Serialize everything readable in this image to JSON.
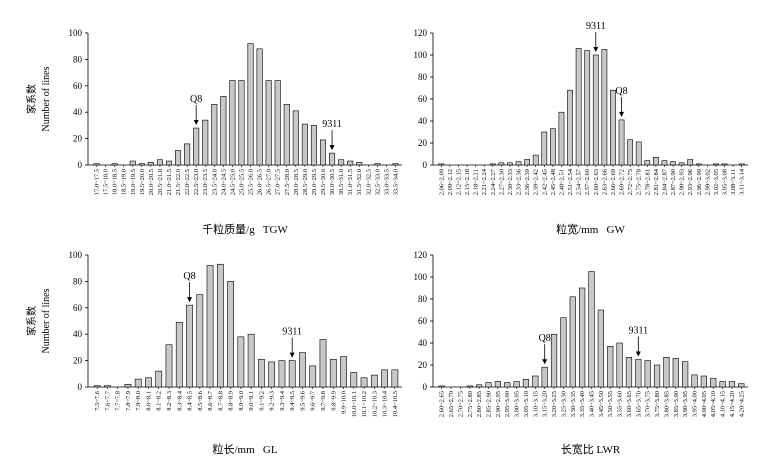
{
  "chart_data": [
    {
      "type": "bar",
      "title": "千粒质量/g   TGW",
      "ylabel": [
        "家系数",
        "Number of lines"
      ],
      "color": "#c8c8c8",
      "categories": [
        "17.0~17.5",
        "17.5~18.0",
        "18.0~18.5",
        "18.5~19.0",
        "19.0~19.5",
        "19.5~20.0",
        "20.0~20.5",
        "20.5~21.0",
        "21.0~21.5",
        "21.5~22.0",
        "22.0~22.5",
        "22.5~23.0",
        "23.0~23.5",
        "23.5~24.0",
        "24.0~24.5",
        "24.5~25.0",
        "25.0~25.5",
        "25.5~26.0",
        "26.0~26.5",
        "26.5~27.0",
        "27.0~27.5",
        "27.5~28.0",
        "28.0~28.5",
        "28.5~29.0",
        "29.0~29.5",
        "29.5~30.0",
        "30.0~30.5",
        "30.5~31.0",
        "31.0~31.5",
        "31.5~32.0",
        "32.0~32.5",
        "32.5~33.0",
        "33.0~33.5",
        "33.5~34.0"
      ],
      "values": [
        1,
        0,
        1,
        0,
        3,
        1,
        2,
        4,
        3,
        11,
        16,
        28,
        34,
        46,
        52,
        64,
        64,
        92,
        88,
        64,
        64,
        46,
        41,
        31,
        30,
        19,
        9,
        4,
        3,
        2,
        0,
        1,
        0,
        1
      ],
      "ylim": [
        0,
        100
      ],
      "yticks": [
        0,
        20,
        40,
        60,
        80,
        100
      ],
      "annotations": [
        {
          "label": "Q8",
          "category": "22.5~23.0"
        },
        {
          "label": "9311",
          "category": "30.0~30.5"
        }
      ]
    },
    {
      "type": "bar",
      "title": "粒宽/mm   GW",
      "color": "#c8c8c8",
      "categories": [
        "2.06~2.09",
        "2.09~2.12",
        "2.12~2.15",
        "2.15~2.18",
        "2.18~2.21",
        "2.21~2.24",
        "2.24~2.27",
        "2.27~2.30",
        "2.30~2.33",
        "2.33~2.36",
        "2.36~2.39",
        "2.39~2.42",
        "2.42~2.45",
        "2.45~2.48",
        "2.48~2.51",
        "2.51~2.54",
        "2.54~2.57",
        "2.57~2.60",
        "2.60~2.63",
        "2.63~2.66",
        "2.66~2.69",
        "2.69~2.72",
        "2.72~2.75",
        "2.75~2.78",
        "2.78~2.81",
        "2.81~2.84",
        "2.84~2.87",
        "2.87~2.90",
        "2.90~2.93",
        "2.93~2.96",
        "2.96~2.99",
        "2.99~3.02",
        "3.02~3.05",
        "3.05~3.08",
        "3.08~3.11",
        "3.11~3.14"
      ],
      "values": [
        1,
        0,
        0,
        0,
        0,
        0,
        1,
        2,
        2,
        3,
        5,
        9,
        30,
        33,
        48,
        68,
        106,
        104,
        100,
        105,
        68,
        41,
        23,
        21,
        4,
        7,
        4,
        3,
        2,
        5,
        1,
        0,
        1,
        1,
        0,
        1
      ],
      "ylim": [
        0,
        120
      ],
      "yticks": [
        0,
        20,
        40,
        60,
        80,
        100,
        120
      ],
      "annotations": [
        {
          "label": "9311",
          "category": "2.60~2.63"
        },
        {
          "label": "Q8",
          "category": "2.69~2.72"
        }
      ]
    },
    {
      "type": "bar",
      "title": "粒长/mm   GL",
      "ylabel": [
        "家系数",
        "Number of lines"
      ],
      "color": "#c8c8c8",
      "categories": [
        "7.5~7.6",
        "7.6~7.7",
        "7.7~7.8",
        "7.8~7.9",
        "7.9~8.0",
        "8.0~8.1",
        "8.1~8.2",
        "8.2~8.3",
        "8.3~8.4",
        "8.4~8.5",
        "8.5~8.6",
        "8.6~8.7",
        "8.7~8.8",
        "8.8~8.9",
        "8.9~9.0",
        "9.0~9.1",
        "9.1~9.2",
        "9.2~9.3",
        "9.3~9.4",
        "9.4~9.5",
        "9.5~9.6",
        "9.6~9.7",
        "9.7~9.8",
        "9.8~9.9",
        "9.9~10.0",
        "10.0~10.1",
        "10.1~10.2",
        "10.2~10.3",
        "10.3~10.4",
        "10.4~10.5"
      ],
      "values": [
        1,
        1,
        0,
        2,
        6,
        7,
        12,
        32,
        49,
        62,
        70,
        92,
        93,
        80,
        38,
        40,
        21,
        19,
        20,
        20,
        26,
        16,
        36,
        21,
        23,
        11,
        7,
        9,
        13,
        13
      ],
      "ylim": [
        0,
        100
      ],
      "yticks": [
        0,
        20,
        40,
        60,
        80,
        100
      ],
      "annotations": [
        {
          "label": "Q8",
          "category": "8.4~8.5"
        },
        {
          "label": "9311",
          "category": "9.4~9.5"
        }
      ]
    },
    {
      "type": "bar",
      "title": "长宽比 LWR",
      "color": "#c8c8c8",
      "categories": [
        "2.60~2.65",
        "2.65~2.70",
        "2.70~2.75",
        "2.75~2.80",
        "2.80~2.85",
        "2.85~2.90",
        "2.90~2.95",
        "2.95~3.00",
        "3.00~3.05",
        "3.05~3.10",
        "3.10~3.15",
        "3.15~3.20",
        "3.20~3.25",
        "3.25~3.30",
        "3.30~3.35",
        "3.35~3.40",
        "3.40~3.45",
        "3.45~3.50",
        "3.50~3.55",
        "3.55~3.60",
        "3.60~3.65",
        "3.65~3.70",
        "3.70~3.75",
        "3.75~3.80",
        "3.80~3.85",
        "3.85~3.90",
        "3.90~3.95",
        "3.95~4.00",
        "4.00~4.05",
        "4.05~4.10",
        "4.10~4.15",
        "4.15~4.20",
        "4.20~4.25"
      ],
      "values": [
        1,
        0,
        0,
        1,
        2,
        4,
        5,
        4,
        5,
        7,
        10,
        18,
        48,
        63,
        82,
        90,
        105,
        70,
        37,
        40,
        27,
        25,
        24,
        20,
        27,
        26,
        23,
        11,
        10,
        8,
        5,
        5,
        3
      ],
      "ylim": [
        0,
        120
      ],
      "yticks": [
        0,
        20,
        40,
        60,
        80,
        100,
        120
      ],
      "annotations": [
        {
          "label": "Q8",
          "category": "3.15~3.20"
        },
        {
          "label": "9311",
          "category": "3.65~3.70"
        }
      ]
    }
  ]
}
